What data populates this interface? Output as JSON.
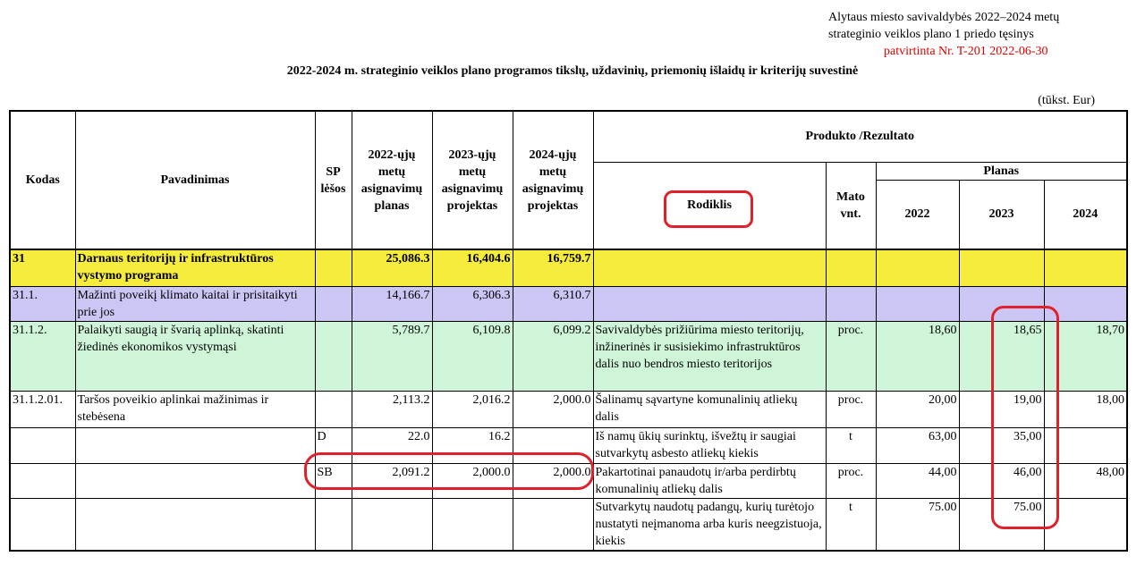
{
  "header": {
    "line1": "Alytaus miesto savivaldybės 2022–2024 metų",
    "line2": "strateginio veiklos plano 1 priedo tęsinys",
    "line3": "patvirtinta Nr. T-201 2022-06-30"
  },
  "title": "2022-2024 m. strateginio veiklos plano programos tikslų, uždavinių, priemonių išlaidų ir kriterijų suvestinė",
  "unit": "(tūkst. Eur)",
  "columns": {
    "kodas": "Kodas",
    "pavadinimas": "Pavadinimas",
    "sp": "SP lėšos",
    "y2022": "2022-ųjų metų asignavimų planas",
    "y2023": "2023-ųjų metų asignavimų projektas",
    "y2024": "2024-ųjų metų asignavimų projektas",
    "produkto": "Produkto /Rezultato",
    "rodiklis": "Rodiklis",
    "mato": "Mato vnt.",
    "planas": "Planas",
    "p2022": "2022",
    "p2023": "2023",
    "p2024": "2024"
  },
  "highlight_color": "#e0202a",
  "rows": [
    {
      "kodas": "31",
      "pavadinimas": "Darnaus teritorijų ir infrastruktūros vystymo programa",
      "sp": "",
      "a2022": "25,086.3",
      "a2023": "16,404.6",
      "a2024": "16,759.7",
      "rodiklis": "",
      "mato": "",
      "p2022": "",
      "p2023": "",
      "p2024": "",
      "color": "#f6ec3c"
    },
    {
      "kodas": "31.1.",
      "pavadinimas": " Mažinti poveikį klimato kaitai ir prisitaikyti prie jos",
      "sp": "",
      "a2022": "14,166.7",
      "a2023": "6,306.3",
      "a2024": "6,310.7",
      "rodiklis": "",
      "mato": "",
      "p2022": "",
      "p2023": "",
      "p2024": "",
      "color": "#ccc6f5"
    },
    {
      "kodas": "31.1.2.",
      "pavadinimas": "Palaikyti saugią ir švarią aplinką, skatinti žiedinės ekonomikos vystymąsi",
      "sp": "",
      "a2022": "5,789.7",
      "a2023": "6,109.8",
      "a2024": "6,099.2",
      "rodiklis": "Savivaldybės prižiūrima miesto teritorijų, inžinerinės ir susisiekimo infrastruktūros dalis nuo bendros miesto teritorijos",
      "mato": "proc.",
      "p2022": "18,60",
      "p2023": "18,65",
      "p2024": "18,70",
      "color": "#cff5d8"
    },
    {
      "kodas": "31.1.2.01.",
      "pavadinimas": "Taršos poveikio aplinkai mažinimas ir stebėsena",
      "sp": "",
      "a2022": "2,113.2",
      "a2023": "2,016.2",
      "a2024": "2,000.0",
      "rodiklis": "Šalinamų sąvartyne komunalinių atliekų dalis",
      "mato": "proc.",
      "p2022": "20,00",
      "p2023": "19,00",
      "p2024": "18,00"
    },
    {
      "kodas": "",
      "pavadinimas": "",
      "sp": "D",
      "a2022": "22.0",
      "a2023": "16.2",
      "a2024": "",
      "rodiklis": "Iš namų ūkių surinktų, išvežtų ir saugiai sutvarkytų asbesto atliekų kiekis",
      "mato": "t",
      "p2022": "63,00",
      "p2023": "35,00",
      "p2024": ""
    },
    {
      "kodas": "",
      "pavadinimas": "",
      "sp": "SB",
      "a2022": "2,091.2",
      "a2023": "2,000.0",
      "a2024": "2,000.0",
      "rodiklis": "Pakartotinai panaudotų ir/arba perdirbtų komunalinių atliekų dalis",
      "mato": "proc.",
      "p2022": "44,00",
      "p2023": "46,00",
      "p2024": "48,00"
    },
    {
      "kodas": "",
      "pavadinimas": "",
      "sp": "",
      "a2022": "",
      "a2023": "",
      "a2024": "",
      "rodiklis": "Sutvarkytų naudotų padangų, kurių turėtojo nustatyti neįmanoma arba kuris neegzistuoja, kiekis",
      "mato": "t",
      "p2022": "75.00",
      "p2023": "75.00",
      "p2024": ""
    }
  ]
}
